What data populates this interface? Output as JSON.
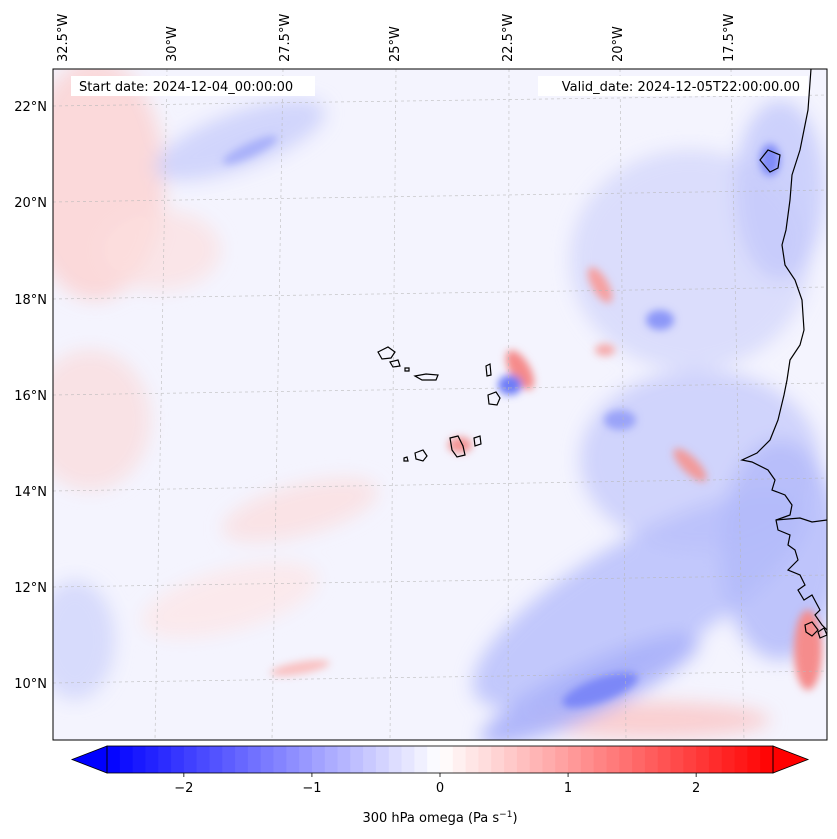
{
  "header": {
    "start_date": "Start date: 2024-12-04_00:00:00",
    "valid_date": "Valid_date: 2024-12-05T22:00:00.00"
  },
  "map": {
    "projection": "lambert-conformal",
    "lon_labels_top": [
      "32.5°W",
      "30°W",
      "27.5°W",
      "25°W",
      "22.5°W",
      "20°W",
      "17.5°W"
    ],
    "lat_labels_left": [
      "22°N",
      "20°N",
      "18°N",
      "16°N",
      "14°N",
      "12°N",
      "10°N"
    ],
    "gridlines": true,
    "coastlines": true,
    "field": "omega"
  },
  "colorbar": {
    "label_main": "300 hPa omega (Pa s",
    "label_sup": "−1",
    "label_end": ")",
    "ticks": [
      "−2",
      "−1",
      "0",
      "1",
      "2"
    ],
    "tick_values": [
      -2,
      -1,
      0,
      1,
      2
    ],
    "range": [
      -2.6,
      2.6
    ],
    "extend": "both",
    "colormap": "bwr",
    "colors": {
      "low": "#0000ff",
      "mid": "#ffffff",
      "high": "#ff0000"
    }
  }
}
